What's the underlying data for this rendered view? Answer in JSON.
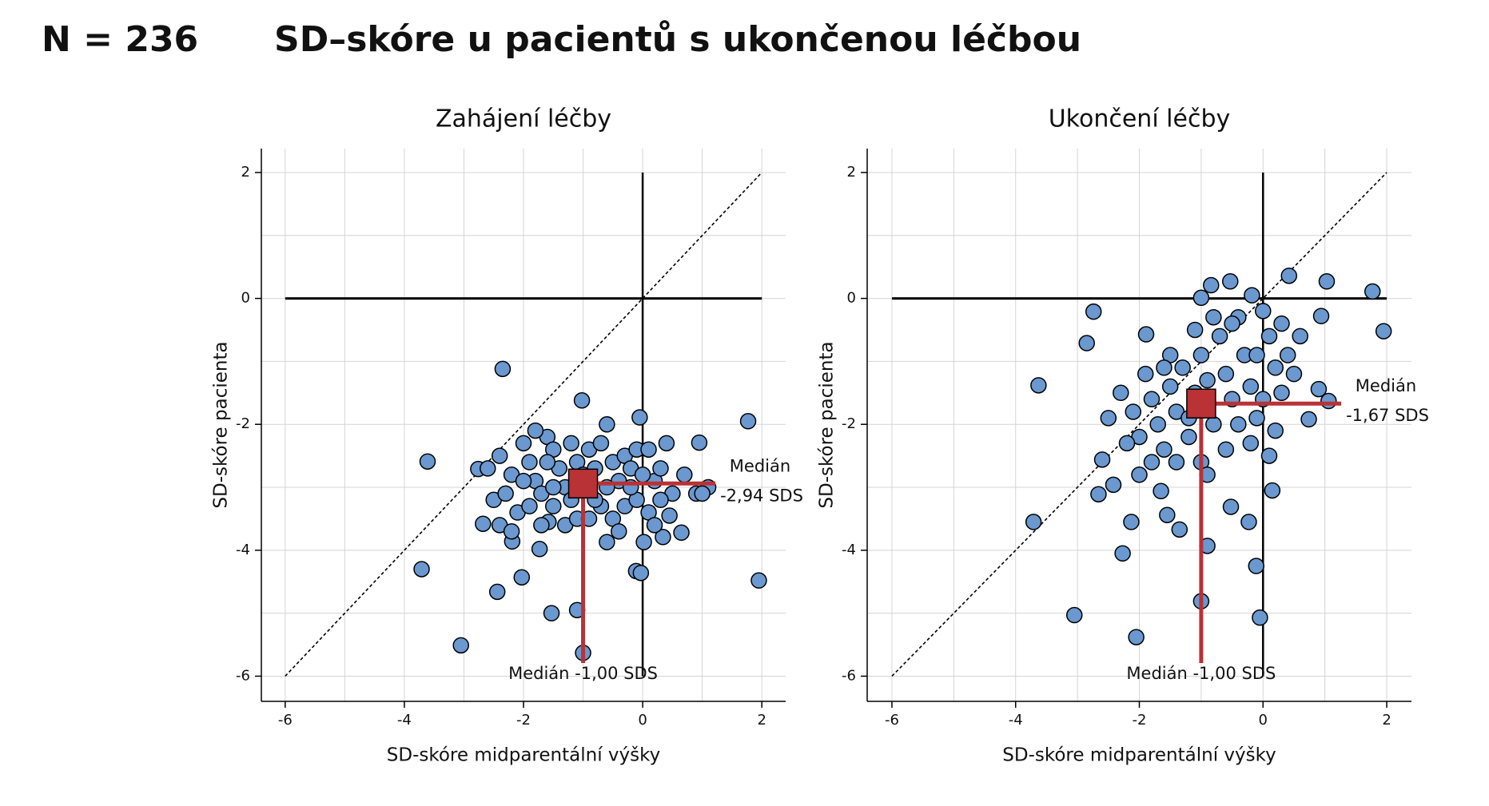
{
  "header": {
    "n_label": "N = 236",
    "title": "SD–skóre u pacientů s ukončenou léčbou"
  },
  "chart_data": [
    {
      "type": "scatter",
      "title": "Zahájení léčby",
      "xlabel": "SD-skóre midparentální výšky",
      "ylabel": "SD-skóre pacienta",
      "x": [
        -2.35,
        -3.61,
        -3.71,
        -3.05,
        -2.44,
        -2.03,
        -1.53,
        -1.1,
        -1.0,
        -1.02,
        1.77,
        1.95,
        0.95,
        -0.05,
        -0.11,
        -0.03,
        0.02,
        0.65,
        0.34,
        -2.76,
        -2.68,
        -2.19,
        -1.73,
        -0.6,
        -1.58,
        -2.5,
        -2.4,
        -2.2,
        -2.0,
        -1.9,
        -1.8,
        -1.7,
        -1.6,
        -1.5,
        -1.4,
        -1.3,
        -1.2,
        -1.1,
        -0.9,
        -0.8,
        -0.7,
        -0.6,
        -0.5,
        -0.4,
        -0.3,
        -0.2,
        -0.1,
        0.1,
        0.2,
        0.3,
        0.4,
        0.5,
        0.7,
        0.9,
        1.1,
        1.0,
        -2.3,
        -2.1,
        -1.9,
        -1.7,
        -1.5,
        -1.3,
        -1.1,
        -0.9,
        -0.7,
        -0.5,
        -0.3,
        -0.1,
        0.1,
        0.3,
        0.45,
        -2.4,
        -2.2,
        -1.5,
        -1.2,
        -0.6,
        -0.2,
        0.0,
        -1.0,
        -1.6,
        -2.0,
        -0.8,
        -0.4,
        0.2,
        -2.6,
        -1.8
      ],
      "y": [
        -1.12,
        -2.59,
        -4.3,
        -5.51,
        -4.66,
        -4.43,
        -5.0,
        -4.95,
        -5.63,
        -1.62,
        -1.95,
        -4.48,
        -2.29,
        -1.89,
        -4.33,
        -4.36,
        -3.87,
        -3.72,
        -3.79,
        -2.71,
        -3.58,
        -3.86,
        -3.98,
        -3.87,
        -3.55,
        -3.2,
        -2.5,
        -2.8,
        -2.3,
        -2.6,
        -2.9,
        -3.1,
        -2.2,
        -2.4,
        -2.7,
        -3.0,
        -2.3,
        -2.6,
        -2.4,
        -2.7,
        -2.3,
        -2.0,
        -2.6,
        -2.9,
        -2.5,
        -2.7,
        -2.4,
        -2.4,
        -2.9,
        -2.7,
        -2.3,
        -3.1,
        -2.8,
        -3.1,
        -3.0,
        -3.1,
        -3.1,
        -3.4,
        -3.3,
        -3.6,
        -3.3,
        -3.6,
        -3.5,
        -3.5,
        -3.3,
        -3.5,
        -3.3,
        -3.2,
        -3.4,
        -3.2,
        -3.45,
        -3.6,
        -3.7,
        -3.0,
        -3.2,
        -3.0,
        -3.0,
        -2.8,
        -2.8,
        -2.6,
        -2.9,
        -3.2,
        -3.7,
        -3.6,
        -2.7,
        -2.1
      ],
      "color": "#6a98cf",
      "xlim": [
        -6.4,
        2.4
      ],
      "ylim": [
        -6.4,
        2.38
      ],
      "xticks": [
        -6,
        -4,
        -2,
        0,
        2
      ],
      "yticks": [
        -6,
        -4,
        -2,
        0,
        2
      ],
      "grid": true,
      "minor_grid": true,
      "zero_lines": true,
      "identity_line": true,
      "median": {
        "x": -1.0,
        "y": -2.94,
        "color": "#b83236",
        "x_label": "Medián -1,00 SDS",
        "y_label": [
          "Medián",
          "-2,94 SDS"
        ]
      }
    },
    {
      "type": "scatter",
      "title": "Ukončení léčby",
      "xlabel": "SD-skóre midparentální výšky",
      "ylabel": "SD-skóre pacienta",
      "x": [
        -3.63,
        -3.71,
        -3.05,
        -2.05,
        -2.27,
        -2.13,
        -2.74,
        -1.0,
        -0.9,
        -0.11,
        -0.05,
        -0.23,
        -0.53,
        -1.0,
        -0.84,
        -0.18,
        0.42,
        1.03,
        1.77,
        1.95,
        0.94,
        0.74,
        0.9,
        1.06,
        0.15,
        -0.52,
        -1.65,
        -2.66,
        -2.6,
        -2.85,
        -1.89,
        -1.55,
        -1.35,
        -2.42,
        -2.3,
        -2.1,
        -2.0,
        -1.9,
        -1.8,
        -1.7,
        -1.6,
        -1.5,
        -1.4,
        -1.3,
        -1.2,
        -1.1,
        -1.0,
        -0.9,
        -0.8,
        -0.7,
        -0.6,
        -0.5,
        -0.4,
        -0.3,
        -0.2,
        -0.1,
        0.0,
        0.1,
        0.2,
        0.3,
        0.4,
        0.5,
        0.2,
        0.1,
        -0.2,
        -0.6,
        -1.0,
        -1.4,
        -1.8,
        -2.2,
        -2.5,
        -1.5,
        -1.1,
        -0.8,
        -1.2,
        -0.4,
        0.0,
        0.3,
        -0.5,
        -1.6,
        -2.0,
        -0.9,
        -0.1,
        0.6
      ],
      "y": [
        -1.38,
        -3.55,
        -5.03,
        -5.38,
        -4.05,
        -3.55,
        -0.21,
        -4.81,
        -3.93,
        -4.25,
        -5.07,
        -3.55,
        0.27,
        0.01,
        0.21,
        0.05,
        0.36,
        0.27,
        0.11,
        -0.52,
        -0.28,
        -1.92,
        -1.44,
        -1.63,
        -3.05,
        -3.31,
        -3.06,
        -3.11,
        -2.56,
        -0.71,
        -0.57,
        -3.44,
        -3.67,
        -2.96,
        -1.5,
        -1.8,
        -2.2,
        -1.2,
        -1.6,
        -2.0,
        -2.4,
        -1.4,
        -1.8,
        -1.1,
        -2.2,
        -1.5,
        -0.9,
        -1.3,
        -2.0,
        -0.6,
        -1.2,
        -1.6,
        -0.3,
        -0.9,
        -1.4,
        -1.9,
        -0.2,
        -0.6,
        -1.1,
        -1.5,
        -0.9,
        -1.2,
        -2.1,
        -2.5,
        -2.3,
        -2.4,
        -2.6,
        -2.6,
        -2.6,
        -2.3,
        -1.9,
        -0.9,
        -0.5,
        -0.3,
        -1.9,
        -2.0,
        -1.6,
        -0.4,
        -0.4,
        -1.1,
        -2.8,
        -2.8,
        -0.9,
        -0.6
      ],
      "color": "#6a98cf",
      "xlim": [
        -6.4,
        2.4
      ],
      "ylim": [
        -6.4,
        2.38
      ],
      "xticks": [
        -6,
        -4,
        -2,
        0,
        2
      ],
      "yticks": [
        -6,
        -4,
        -2,
        0,
        2
      ],
      "grid": true,
      "minor_grid": true,
      "zero_lines": true,
      "identity_line": true,
      "median": {
        "x": -1.0,
        "y": -1.67,
        "color": "#b83236",
        "x_label": "Medián -1,00 SDS",
        "y_label": [
          "Medián",
          "-1,67 SDS"
        ]
      }
    }
  ]
}
